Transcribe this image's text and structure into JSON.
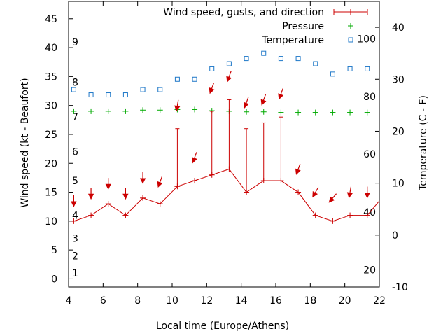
{
  "chart_data": {
    "type": "line",
    "xlabel": "Local time (Europe/Athens)",
    "ylabel_left": "Wind speed (kt - Beaufort)",
    "ylabel_right": "Temperature (C - F)",
    "x_range": [
      4,
      22
    ],
    "x_ticks": [
      4,
      6,
      8,
      10,
      12,
      14,
      16,
      18,
      20,
      22
    ],
    "y_left_range": [
      -1.4,
      48
    ],
    "y_left_ticks": [
      0,
      5,
      10,
      15,
      20,
      25,
      30,
      35,
      40,
      45
    ],
    "y_right_range": [
      -10,
      45
    ],
    "y_right_ticks": [
      -10,
      0,
      10,
      20,
      30,
      40
    ],
    "beaufort_labels": [
      {
        "label": "1",
        "kt": 1
      },
      {
        "label": "2",
        "kt": 4
      },
      {
        "label": "3",
        "kt": 7
      },
      {
        "label": "4",
        "kt": 11
      },
      {
        "label": "5",
        "kt": 17
      },
      {
        "label": "6",
        "kt": 22
      },
      {
        "label": "7",
        "kt": 28
      },
      {
        "label": "8",
        "kt": 34
      },
      {
        "label": "9",
        "kt": 41
      }
    ],
    "fahrenheit_labels": [
      {
        "label": "20",
        "c": -6.7
      },
      {
        "label": "40",
        "c": 4.4
      },
      {
        "label": "60",
        "c": 15.6
      },
      {
        "label": "80",
        "c": 26.7
      },
      {
        "label": "100",
        "c": 37.8
      }
    ],
    "legend_position": "top-right",
    "series": [
      {
        "name": "Wind speed, gusts, and direction",
        "color": "#cc0000",
        "axis": "left",
        "x": [
          4.3,
          5.3,
          6.3,
          7.3,
          8.3,
          9.3,
          10.3,
          11.3,
          12.3,
          13.3,
          14.3,
          15.3,
          16.3,
          17.3,
          18.3,
          19.3,
          20.3,
          21.3,
          22.0
        ],
        "values": [
          10,
          11,
          13,
          11,
          14,
          13,
          16,
          17,
          18,
          19,
          15,
          17,
          17,
          15,
          11,
          10,
          11,
          11,
          13.5
        ],
        "gusts": [
          null,
          null,
          null,
          null,
          null,
          null,
          26,
          null,
          29,
          31,
          26,
          27,
          28,
          null,
          null,
          null,
          null,
          null,
          null
        ]
      },
      {
        "name": "Pressure",
        "color": "#00aa00",
        "axis": "left",
        "x": [
          4.3,
          5.3,
          6.3,
          7.3,
          8.3,
          9.3,
          10.3,
          11.3,
          12.3,
          13.3,
          14.3,
          15.3,
          16.3,
          17.3,
          18.3,
          19.3,
          20.3,
          21.3
        ],
        "values": [
          29,
          29,
          29,
          29,
          29.2,
          29.2,
          29.3,
          29.3,
          29.1,
          29,
          28.9,
          28.9,
          28.8,
          28.8,
          28.8,
          28.8,
          28.8,
          28.8
        ]
      },
      {
        "name": "Temperature",
        "color": "#1f78c8",
        "axis": "right",
        "x": [
          4.3,
          5.3,
          6.3,
          7.3,
          8.3,
          9.3,
          10.3,
          11.3,
          12.3,
          13.3,
          14.3,
          15.3,
          16.3,
          17.3,
          18.3,
          19.3,
          20.3,
          21.3
        ],
        "values": [
          28,
          27,
          27,
          27,
          28,
          28,
          30,
          30,
          32,
          33,
          34,
          35,
          34,
          34,
          33,
          31,
          32,
          32
        ]
      }
    ],
    "wind_direction": {
      "x": [
        4.3,
        5.3,
        6.3,
        7.3,
        8.3,
        9.3,
        10.3,
        11.3,
        12.3,
        13.3,
        14.3,
        15.3,
        16.3,
        17.3,
        18.3,
        19.3,
        20.3,
        21.3
      ],
      "y": [
        13.5,
        14.8,
        16.5,
        14.8,
        17.5,
        16.8,
        30,
        21,
        33,
        35,
        30.5,
        31,
        32,
        19,
        15,
        14,
        15,
        15
      ],
      "direction_deg": [
        0,
        0,
        0,
        0,
        0,
        20,
        10,
        20,
        20,
        20,
        20,
        20,
        20,
        20,
        30,
        40,
        10,
        0
      ]
    }
  }
}
